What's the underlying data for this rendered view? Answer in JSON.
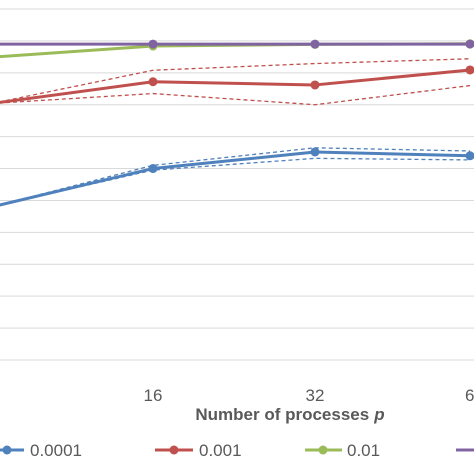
{
  "chart_data": {
    "type": "line",
    "xlabel_main": "Number of processes",
    "xlabel_var": "p",
    "x_visible_ticks": [
      "16",
      "32",
      "6"
    ],
    "x_positions": [
      8,
      16,
      32,
      64
    ],
    "grid": true,
    "legend_position": "bottom",
    "series": [
      {
        "name": "0.0001",
        "color": "#4f81bd",
        "values": [
          0.48,
          0.6,
          0.652,
          0.64
        ],
        "band_upper": [
          0.48,
          0.61,
          0.665,
          0.655
        ],
        "band_lower": [
          0.48,
          0.595,
          0.632,
          0.627
        ]
      },
      {
        "name": "0.001",
        "color": "#c0504d",
        "values": [
          0.804,
          0.872,
          0.862,
          0.909
        ],
        "band_upper": [
          0.804,
          0.908,
          0.929,
          0.944
        ],
        "band_lower": [
          0.804,
          0.835,
          0.8,
          0.86
        ]
      },
      {
        "name": "0.01",
        "color": "#9bbb59",
        "values": [
          0.949,
          0.984,
          0.989,
          0.991
        ]
      },
      {
        "name": "",
        "color": "#8064a2",
        "values": [
          0.99,
          0.99,
          0.99,
          0.99
        ]
      }
    ]
  }
}
